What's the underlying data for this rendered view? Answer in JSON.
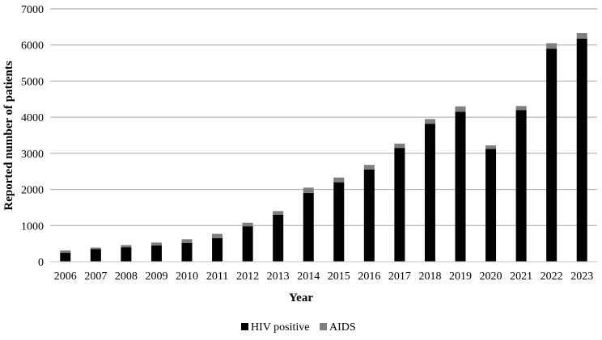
{
  "chart_data": {
    "type": "bar",
    "stacked": true,
    "title": "",
    "xlabel": "Year",
    "ylabel": "Reported number of patients",
    "ylim": [
      0,
      7000
    ],
    "yticks": [
      0,
      1000,
      2000,
      3000,
      4000,
      5000,
      6000,
      7000
    ],
    "grid": true,
    "legend_position": "bottom",
    "categories": [
      "2006",
      "2007",
      "2008",
      "2009",
      "2010",
      "2011",
      "2012",
      "2013",
      "2014",
      "2015",
      "2016",
      "2017",
      "2018",
      "2019",
      "2020",
      "2021",
      "2022",
      "2023"
    ],
    "series": [
      {
        "name": "HIV positive",
        "color": "#000000",
        "values": [
          250,
          350,
          400,
          450,
          520,
          650,
          980,
          1300,
          1900,
          2200,
          2550,
          3150,
          3820,
          4150,
          3120,
          4200,
          5900,
          6180
        ]
      },
      {
        "name": "AIDS",
        "color": "#7f7f7f",
        "values": [
          60,
          40,
          60,
          80,
          100,
          120,
          100,
          100,
          150,
          130,
          130,
          120,
          130,
          150,
          100,
          110,
          150,
          150
        ]
      }
    ]
  }
}
